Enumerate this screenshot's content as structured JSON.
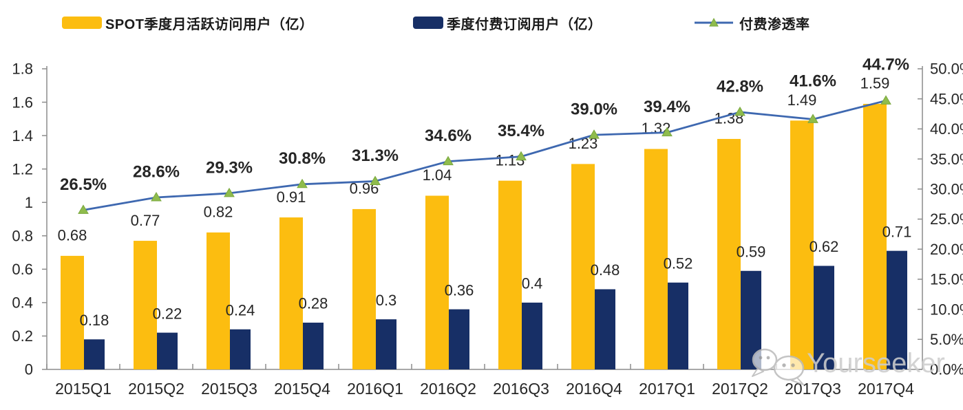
{
  "legend": {
    "items": [
      {
        "label": "SPOT季度月活跃访问用户（亿）",
        "type": "bar",
        "color": "#FCBD10"
      },
      {
        "label": "季度付费订阅用户（亿）",
        "type": "bar",
        "color": "#172F66"
      },
      {
        "label": "付费渗透率",
        "type": "line",
        "color": "#3E68B0",
        "marker_color": "#8FBC4D"
      }
    ]
  },
  "watermark": {
    "text": "Yourseeker",
    "icon": "wechat-icon",
    "color": "#CDCDCD"
  },
  "chart_data": {
    "type": "bar",
    "subtype": "combo-bar-line",
    "title": "",
    "categories": [
      "2015Q1",
      "2015Q2",
      "2015Q3",
      "2015Q4",
      "2016Q1",
      "2016Q2",
      "2016Q3",
      "2016Q4",
      "2017Q1",
      "2017Q2",
      "2017Q3",
      "2017Q4"
    ],
    "series": [
      {
        "name": "SPOT季度月活跃访问用户（亿）",
        "type": "bar",
        "axis": "left",
        "color": "#FCBD10",
        "values": [
          0.68,
          0.77,
          0.82,
          0.91,
          0.96,
          1.04,
          1.13,
          1.23,
          1.32,
          1.38,
          1.49,
          1.59
        ],
        "labels": [
          "0.68",
          "0.77",
          "0.82",
          "0.91",
          "0.96",
          "1.04",
          "1.13",
          "1.23",
          "1.32",
          "1.38",
          "1.49",
          "1.59"
        ]
      },
      {
        "name": "季度付费订阅用户（亿）",
        "type": "bar",
        "axis": "left",
        "color": "#172F66",
        "values": [
          0.18,
          0.22,
          0.24,
          0.28,
          0.3,
          0.36,
          0.4,
          0.48,
          0.52,
          0.59,
          0.62,
          0.71
        ],
        "labels": [
          "0.18",
          "0.22",
          "0.24",
          "0.28",
          "0.3",
          "0.36",
          "0.4",
          "0.48",
          "0.52",
          "0.59",
          "0.62",
          "0.71"
        ]
      },
      {
        "name": "付费渗透率",
        "type": "line",
        "axis": "right",
        "color": "#3E68B0",
        "marker": "triangle",
        "marker_color": "#8FBC4D",
        "values": [
          26.5,
          28.6,
          29.3,
          30.8,
          31.3,
          34.6,
          35.4,
          39.0,
          39.4,
          42.8,
          41.6,
          44.7
        ],
        "labels": [
          "26.5%",
          "28.6%",
          "29.3%",
          "30.8%",
          "31.3%",
          "34.6%",
          "35.4%",
          "39.0%",
          "39.4%",
          "42.8%",
          "41.6%",
          "44.7%"
        ]
      }
    ],
    "left_axis": {
      "min": 0,
      "max": 1.8,
      "step": 0.2,
      "tick_labels": [
        "1.8",
        "1.6",
        "1.4",
        "1.2",
        "1",
        "0.8",
        "0.6",
        "0.4",
        "0.2",
        "0"
      ]
    },
    "right_axis": {
      "min": 0,
      "max": 50,
      "step": 5,
      "tick_labels": [
        "50.0%",
        "45.0%",
        "40.0%",
        "35.0%",
        "30.0%",
        "25.0%",
        "20.0%",
        "15.0%",
        "10.0%",
        "5.0%",
        "0.0%"
      ]
    },
    "grid": false,
    "legend_position": "top"
  }
}
